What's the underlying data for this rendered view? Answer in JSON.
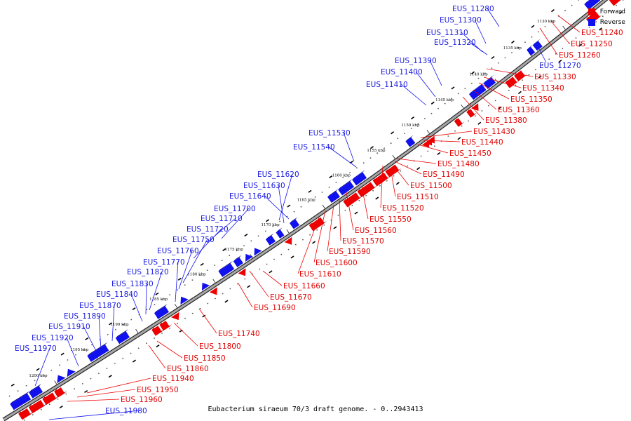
{
  "caption": "Eubacterium siraeum 70/3 draft genome. - 0..2943413",
  "legend": [
    {
      "label": "Forward",
      "color": "#ee0000"
    },
    {
      "label": "Reverse",
      "color": "#1111ee"
    }
  ],
  "colors": {
    "forward": "#ee0000",
    "reverse": "#1111ee",
    "backbone": "#8a8a8a"
  },
  "kbp_ticks": [
    {
      "label": "1130 kbp",
      "pos": 1130
    },
    {
      "label": "1135 kbp",
      "pos": 1135
    },
    {
      "label": "1140 kbp",
      "pos": 1140
    },
    {
      "label": "1145 kbp",
      "pos": 1145
    },
    {
      "label": "1150 kbp",
      "pos": 1150
    },
    {
      "label": "1155 kbp",
      "pos": 1155
    },
    {
      "label": "1160 kbp",
      "pos": 1160
    },
    {
      "label": "1165 kbp",
      "pos": 1165
    },
    {
      "label": "1170 kbp",
      "pos": 1170
    },
    {
      "label": "1175 kbp",
      "pos": 1175
    },
    {
      "label": "1180 kbp",
      "pos": 1180
    },
    {
      "label": "1185 kbp",
      "pos": 1185
    },
    {
      "label": "1190 kbp",
      "pos": 1190
    },
    {
      "label": "1195 kbp",
      "pos": 1195
    },
    {
      "label": "1200 kbp",
      "pos": 1200
    }
  ],
  "reverse_genes": [
    {
      "label": "EUS_11280"
    },
    {
      "label": "EUS_11300"
    },
    {
      "label": "EUS_11310"
    },
    {
      "label": "EUS_11320"
    },
    {
      "label": "EUS_11390"
    },
    {
      "label": "EUS_11400"
    },
    {
      "label": "EUS_11410"
    },
    {
      "label": "EUS_11530"
    },
    {
      "label": "EUS_11540"
    },
    {
      "label": "EUS_11620"
    },
    {
      "label": "EUS_11630"
    },
    {
      "label": "EUS_11640"
    },
    {
      "label": "EUS_11700"
    },
    {
      "label": "EUS_11710"
    },
    {
      "label": "EUS_11720"
    },
    {
      "label": "EUS_11750"
    },
    {
      "label": "EUS_11760"
    },
    {
      "label": "EUS_11770"
    },
    {
      "label": "EUS_11820"
    },
    {
      "label": "EUS_11830"
    },
    {
      "label": "EUS_11840"
    },
    {
      "label": "EUS_11870"
    },
    {
      "label": "EUS_11890"
    },
    {
      "label": "EUS_11910"
    },
    {
      "label": "EUS_11920"
    },
    {
      "label": "EUS_11970"
    },
    {
      "label": "EUS_11270"
    },
    {
      "label": "EUS_11980"
    }
  ],
  "forward_genes": [
    {
      "label": "EUS_11240"
    },
    {
      "label": "EUS_11250"
    },
    {
      "label": "EUS_11260"
    },
    {
      "label": "EUS_11330"
    },
    {
      "label": "EUS_11340"
    },
    {
      "label": "EUS_11350"
    },
    {
      "label": "EUS_11360"
    },
    {
      "label": "EUS_11380"
    },
    {
      "label": "EUS_11430"
    },
    {
      "label": "EUS_11440"
    },
    {
      "label": "EUS_11450"
    },
    {
      "label": "EUS_11480"
    },
    {
      "label": "EUS_11490"
    },
    {
      "label": "EUS_11500"
    },
    {
      "label": "EUS_11510"
    },
    {
      "label": "EUS_11520"
    },
    {
      "label": "EUS_11550"
    },
    {
      "label": "EUS_11560"
    },
    {
      "label": "EUS_11570"
    },
    {
      "label": "EUS_11590"
    },
    {
      "label": "EUS_11600"
    },
    {
      "label": "EUS_11610"
    },
    {
      "label": "EUS_11660"
    },
    {
      "label": "EUS_11670"
    },
    {
      "label": "EUS_11690"
    },
    {
      "label": "EUS_11740"
    },
    {
      "label": "EUS_11800"
    },
    {
      "label": "EUS_11850"
    },
    {
      "label": "EUS_11860"
    },
    {
      "label": "EUS_11940"
    },
    {
      "label": "EUS_11950"
    },
    {
      "label": "EUS_11960"
    }
  ]
}
